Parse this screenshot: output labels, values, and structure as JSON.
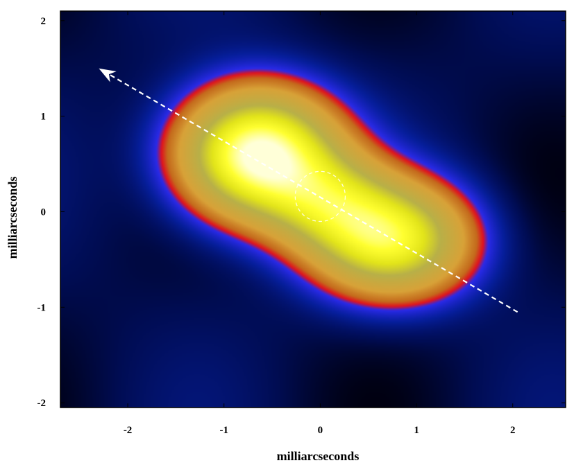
{
  "chart_data": {
    "type": "heatmap",
    "title": "",
    "xlabel": "milliarcseconds",
    "ylabel": "milliarcseconds",
    "xlim": [
      -2.7,
      2.55
    ],
    "ylim": [
      -2.05,
      2.1
    ],
    "x_ticks": [
      -2,
      -1,
      0,
      1,
      2
    ],
    "y_ticks": [
      -2,
      -1,
      0,
      1,
      2
    ],
    "x_tick_labels": [
      "-2",
      "-1",
      "0",
      "1",
      "2"
    ],
    "y_tick_labels": [
      "-2",
      "-1",
      "0",
      "1",
      "2"
    ],
    "colormap": [
      "#000010",
      "#000c52",
      "#061e9a",
      "#2a2ae8",
      "#e0121e",
      "#c46a1c",
      "#d8a238",
      "#b8b048",
      "#e2e41a",
      "#ffff30",
      "#ffffd8"
    ],
    "components": [
      {
        "x": -0.65,
        "y": 0.6,
        "sigma_x": 0.55,
        "sigma_y": 0.45,
        "amplitude": 1.0
      },
      {
        "x": 0.75,
        "y": -0.3,
        "sigma_x": 0.55,
        "sigma_y": 0.4,
        "amplitude": 0.75
      },
      {
        "x": 0.1,
        "y": 0.1,
        "sigma_x": 0.45,
        "sigma_y": 0.35,
        "amplitude": 0.4
      }
    ],
    "annotations": {
      "jet_axis": {
        "from": [
          2.05,
          -1.05
        ],
        "to": [
          -2.3,
          1.5
        ],
        "style": "dashed-arrow",
        "color": "#ffffff"
      },
      "core_circle": {
        "center": [
          0.0,
          0.16
        ],
        "radius": 0.26,
        "style": "dashed",
        "color": "#ffffff"
      }
    },
    "grid": false
  }
}
